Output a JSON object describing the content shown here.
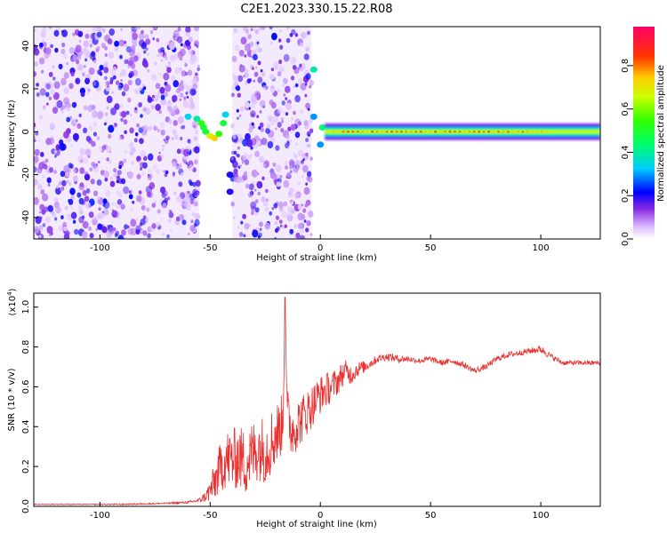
{
  "title": "C2E1.2023.330.15.22.R08",
  "chart_data": [
    {
      "type": "heatmap",
      "xlabel": "Height of straight line (km)",
      "ylabel": "Frequency (Hz)",
      "xlim": [
        -130,
        127
      ],
      "ylim": [
        -50,
        49
      ],
      "x_ticks": [
        -100,
        -50,
        0,
        50,
        100
      ],
      "y_ticks": [
        -40,
        -20,
        0,
        20,
        40
      ],
      "noise_regions": [
        [
          -130,
          -55
        ],
        [
          -40,
          -4
        ]
      ],
      "gap_regions": [
        [
          -55,
          -40
        ]
      ],
      "signal": {
        "center_frequency_hz": 0,
        "x_start_km": 2,
        "x_end_km": 127,
        "halfwidth_hz": 2.5,
        "peak_amplitude": 0.85
      },
      "blobs": [
        {
          "x": -60,
          "y": 7,
          "amp": 0.35
        },
        {
          "x": -56,
          "y": 6,
          "amp": 0.4
        },
        {
          "x": -54,
          "y": 4,
          "amp": 0.55
        },
        {
          "x": -53,
          "y": 2,
          "amp": 0.5
        },
        {
          "x": -52,
          "y": 0,
          "amp": 0.5
        },
        {
          "x": -50,
          "y": -2,
          "amp": 0.7
        },
        {
          "x": -48,
          "y": -3,
          "amp": 0.75
        },
        {
          "x": -46,
          "y": -1,
          "amp": 0.55
        },
        {
          "x": -44,
          "y": 4,
          "amp": 0.5
        },
        {
          "x": -43,
          "y": 8,
          "amp": 0.35
        },
        {
          "x": -41,
          "y": -28,
          "amp": 0.2
        },
        {
          "x": -41,
          "y": -20,
          "amp": 0.2
        },
        {
          "x": -3,
          "y": 29,
          "amp": 0.4
        },
        {
          "x": -3,
          "y": 7,
          "amp": 0.3
        },
        {
          "x": 0,
          "y": -6,
          "amp": 0.3
        },
        {
          "x": 1,
          "y": 2,
          "amp": 0.45
        }
      ],
      "colorbar": {
        "label": "Normalized spectral amplitude",
        "ticks": [
          0.0,
          0.2,
          0.4,
          0.6,
          0.8
        ],
        "range": [
          0,
          0.98
        ]
      }
    },
    {
      "type": "line",
      "xlabel": "Height of straight line (km)",
      "ylabel": "SNR (10 * v/v)",
      "exponent_label": "(x10",
      "exponent_power": "4",
      "exponent_close": ")",
      "xlim": [
        -130,
        127
      ],
      "ylim": [
        0.0,
        1.07
      ],
      "x_ticks": [
        -100,
        -50,
        0,
        50,
        100
      ],
      "y_ticks": [
        0.0,
        0.2,
        0.4,
        0.6,
        0.8,
        1.0
      ],
      "y_tick_labels": [
        "0.0",
        "0.2",
        "0.4",
        "0.6",
        "0.8",
        "1.0"
      ],
      "series": [
        {
          "color": "#e83030",
          "x": [
            -130,
            -110,
            -90,
            -70,
            -60,
            -55,
            -52,
            -50,
            -48,
            -46,
            -44,
            -42,
            -40,
            -37,
            -34,
            -31,
            -28,
            -25,
            -22,
            -19,
            -17,
            -16,
            -15,
            -13,
            -10,
            -7,
            -4,
            -1,
            2,
            5,
            8,
            11,
            14,
            17,
            20,
            23,
            26,
            29,
            32,
            35,
            40,
            45,
            50,
            55,
            60,
            65,
            70,
            75,
            80,
            85,
            90,
            95,
            100,
            105,
            110,
            115,
            120,
            127
          ],
          "y": [
            0.01,
            0.01,
            0.01,
            0.015,
            0.02,
            0.03,
            0.05,
            0.08,
            0.12,
            0.18,
            0.22,
            0.24,
            0.23,
            0.25,
            0.22,
            0.26,
            0.3,
            0.28,
            0.33,
            0.38,
            0.42,
            1.05,
            0.45,
            0.38,
            0.42,
            0.46,
            0.5,
            0.55,
            0.58,
            0.6,
            0.63,
            0.68,
            0.66,
            0.69,
            0.7,
            0.72,
            0.74,
            0.75,
            0.75,
            0.74,
            0.74,
            0.73,
            0.74,
            0.72,
            0.73,
            0.71,
            0.68,
            0.7,
            0.74,
            0.76,
            0.77,
            0.78,
            0.79,
            0.75,
            0.72,
            0.72,
            0.72,
            0.72
          ],
          "noise_amplitude": [
            0.002,
            0.002,
            0.003,
            0.004,
            0.006,
            0.01,
            0.03,
            0.06,
            0.1,
            0.12,
            0.14,
            0.15,
            0.16,
            0.16,
            0.17,
            0.17,
            0.17,
            0.17,
            0.17,
            0.16,
            0.15,
            0.0,
            0.15,
            0.14,
            0.13,
            0.12,
            0.11,
            0.1,
            0.09,
            0.08,
            0.07,
            0.06,
            0.05,
            0.04,
            0.03,
            0.025,
            0.02,
            0.02,
            0.02,
            0.02,
            0.015,
            0.015,
            0.015,
            0.015,
            0.015,
            0.015,
            0.015,
            0.015,
            0.015,
            0.015,
            0.015,
            0.015,
            0.02,
            0.015,
            0.012,
            0.012,
            0.012,
            0.012
          ]
        }
      ]
    }
  ]
}
